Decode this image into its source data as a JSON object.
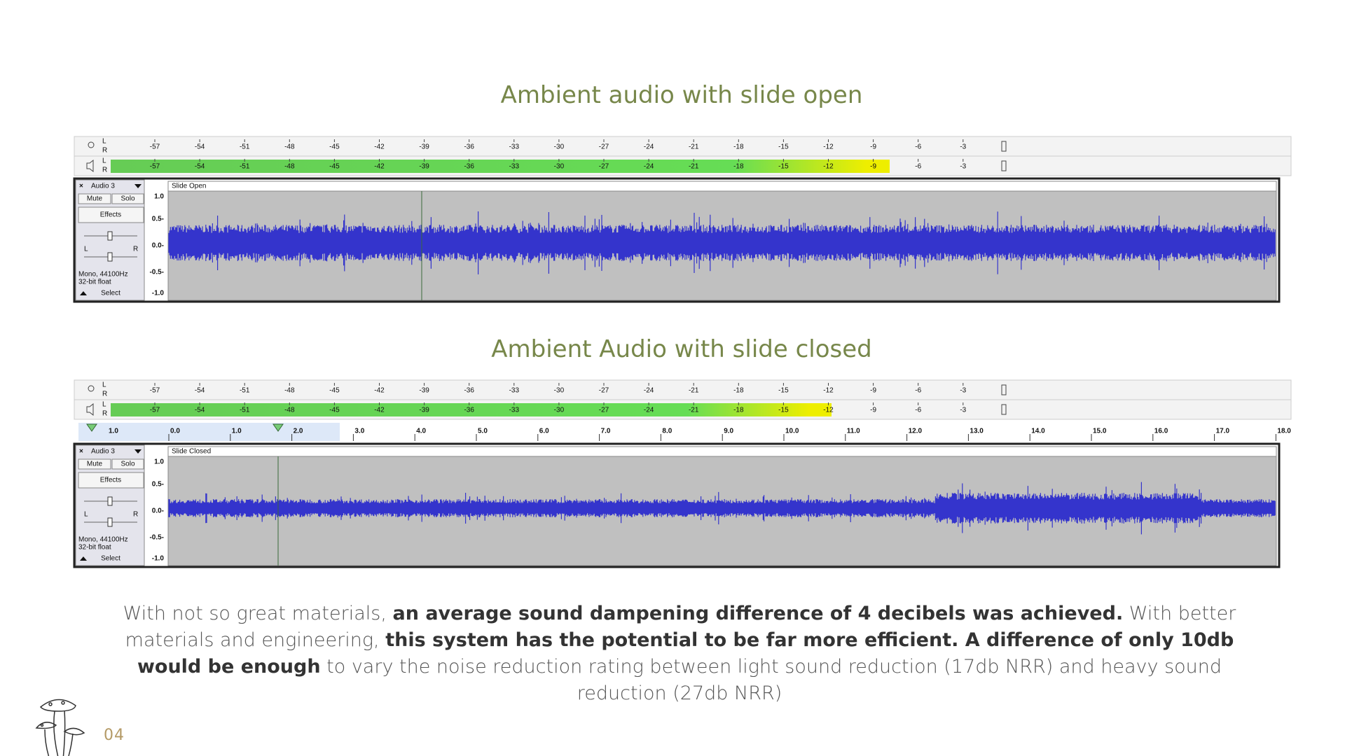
{
  "panels": [
    {
      "title": "Ambient audio with slide open",
      "meter_channels": [
        "L",
        "R"
      ],
      "meter_ticks": [
        "-57",
        "-54",
        "-51",
        "-48",
        "-45",
        "-42",
        "-39",
        "-36",
        "-33",
        "-30",
        "-27",
        "-24",
        "-21",
        "-18",
        "-15",
        "-12",
        "-9",
        "-6",
        "-3"
      ],
      "track": {
        "name": "Audio 3",
        "mute": "Mute",
        "solo": "Solo",
        "effects": "Effects",
        "pan_left": "L",
        "pan_right": "R",
        "info": [
          "Mono, 44100Hz",
          "32-bit float"
        ],
        "select": "Select",
        "clip": "Slide Open",
        "y_ticks": [
          "1.0",
          "0.5-",
          "0.0-",
          "-0.5-",
          "-1.0"
        ]
      }
    },
    {
      "title": "Ambient Audio with slide closed",
      "meter_channels": [
        "L",
        "R"
      ],
      "meter_ticks": [
        "-57",
        "-54",
        "-51",
        "-48",
        "-45",
        "-42",
        "-39",
        "-36",
        "-33",
        "-30",
        "-27",
        "-24",
        "-21",
        "-18",
        "-15",
        "-12",
        "-9",
        "-6",
        "-3"
      ],
      "timeline": [
        "1.0",
        "0.0",
        "1.0",
        "2.0",
        "3.0",
        "4.0",
        "5.0",
        "6.0",
        "7.0",
        "8.0",
        "9.0",
        "10.0",
        "11.0",
        "12.0",
        "13.0",
        "14.0",
        "15.0",
        "16.0",
        "17.0",
        "18.0"
      ],
      "track": {
        "name": "Audio 3",
        "mute": "Mute",
        "solo": "Solo",
        "effects": "Effects",
        "pan_left": "L",
        "pan_right": "R",
        "info": [
          "Mono, 44100Hz",
          "32-bit float"
        ],
        "select": "Select",
        "clip": "Slide Closed",
        "y_ticks": [
          "1.0",
          "0.5-",
          "0.0-",
          "-0.5-",
          "-1.0"
        ]
      }
    }
  ],
  "paragraph": [
    {
      "text": "With not so great materials, ",
      "bold": false
    },
    {
      "text": "an average sound dampening difference of 4 decibels was achieved.",
      "bold": true
    },
    {
      "text": " With better materials and engineering, ",
      "bold": false
    },
    {
      "text": "this system has the potential to be far more efficient. A difference of only 10db would be enough",
      "bold": true
    },
    {
      "text": " to vary the noise reduction rating between light sound reduction (17db NRR) and heavy sound reduction (27db NRR)",
      "bold": false
    }
  ],
  "page_number": "04"
}
